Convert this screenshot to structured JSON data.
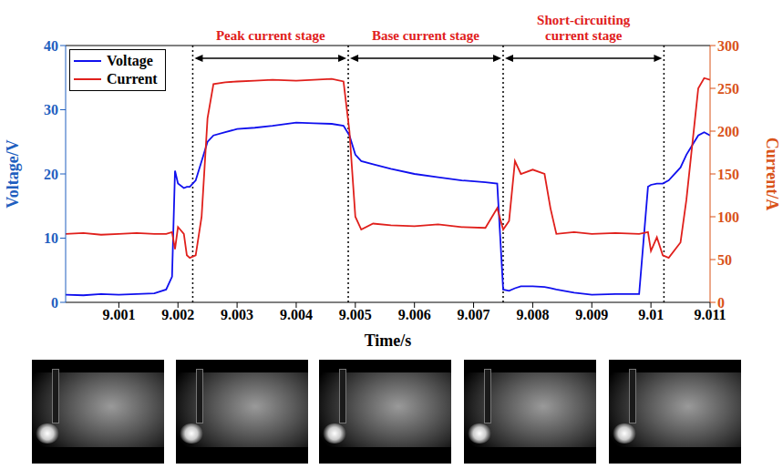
{
  "chart_data": {
    "type": "line",
    "x": [
      9.0001,
      9.0004,
      9.0007,
      9.001,
      9.0013,
      9.0016,
      9.0018,
      9.0019,
      9.00195,
      9.002,
      9.0021,
      9.00215,
      9.0022,
      9.0023,
      9.0024,
      9.0025,
      9.0026,
      9.0028,
      9.003,
      9.0033,
      9.0036,
      9.004,
      9.0043,
      9.0046,
      9.0048,
      9.0049,
      9.005,
      9.0051,
      9.0053,
      9.0056,
      9.006,
      9.0064,
      9.0068,
      9.0072,
      9.0074,
      9.0075,
      9.0076,
      9.0077,
      9.0078,
      9.008,
      9.0082,
      9.0083,
      9.0084,
      9.0087,
      9.009,
      9.0094,
      9.0098,
      9.00995,
      9.01,
      9.0101,
      9.0102,
      9.0103,
      9.0105,
      9.0106,
      9.0107,
      9.0108,
      9.0109,
      9.011
    ],
    "series": [
      {
        "name": "Voltage",
        "color": "#1010ee",
        "values": [
          1.2,
          1.1,
          1.3,
          1.2,
          1.3,
          1.4,
          2.0,
          4.0,
          20.5,
          18.5,
          17.8,
          18.0,
          18.0,
          19.0,
          22.0,
          25.0,
          26.0,
          26.5,
          27.0,
          27.2,
          27.5,
          28.0,
          27.9,
          27.8,
          27.5,
          26.0,
          23.0,
          22.0,
          21.5,
          20.8,
          20.0,
          19.5,
          19.0,
          18.7,
          18.5,
          2.0,
          1.8,
          2.2,
          2.5,
          2.5,
          2.4,
          2.2,
          2.0,
          1.5,
          1.2,
          1.3,
          1.3,
          18.0,
          18.3,
          18.5,
          18.5,
          19.0,
          21.0,
          23.0,
          24.5,
          26.0,
          26.5,
          26.0
        ]
      },
      {
        "name": "Current",
        "color": "#e0201c",
        "axis": "y2",
        "values": [
          80,
          81,
          79,
          80,
          81,
          80,
          80,
          82,
          62,
          88,
          80,
          55,
          52,
          55,
          100,
          215,
          255,
          257,
          258,
          259,
          260,
          259,
          260,
          261,
          258,
          200,
          100,
          85,
          92,
          90,
          89,
          91,
          88,
          87,
          110,
          85,
          95,
          165,
          150,
          155,
          150,
          110,
          80,
          82,
          80,
          81,
          80,
          82,
          60,
          76,
          55,
          52,
          70,
          120,
          185,
          250,
          262,
          260
        ]
      }
    ],
    "xlim": [
      9.0001,
      9.011
    ],
    "xticks": [
      9.001,
      9.002,
      9.003,
      9.004,
      9.005,
      9.006,
      9.007,
      9.008,
      9.009,
      9.01,
      9.011
    ],
    "ylim": [
      0,
      40
    ],
    "yticks": [
      0,
      10,
      20,
      30,
      40
    ],
    "y2lim": [
      0,
      300
    ],
    "y2ticks": [
      0,
      50,
      100,
      150,
      200,
      250,
      300
    ],
    "x_label": "Time/s",
    "y_label": "Voltage/V",
    "y2_label": "Current/A",
    "legend": "upper left",
    "grid": false,
    "annotations": [
      {
        "text": "Peak current stage",
        "x_start": 9.00225,
        "x_end": 9.00488
      },
      {
        "text": "Base current stage",
        "x_start": 9.00488,
        "x_end": 9.0075
      },
      {
        "text": "Short-circuiting current stage",
        "x_start": 9.0075,
        "x_end": 9.01022
      }
    ]
  }
}
